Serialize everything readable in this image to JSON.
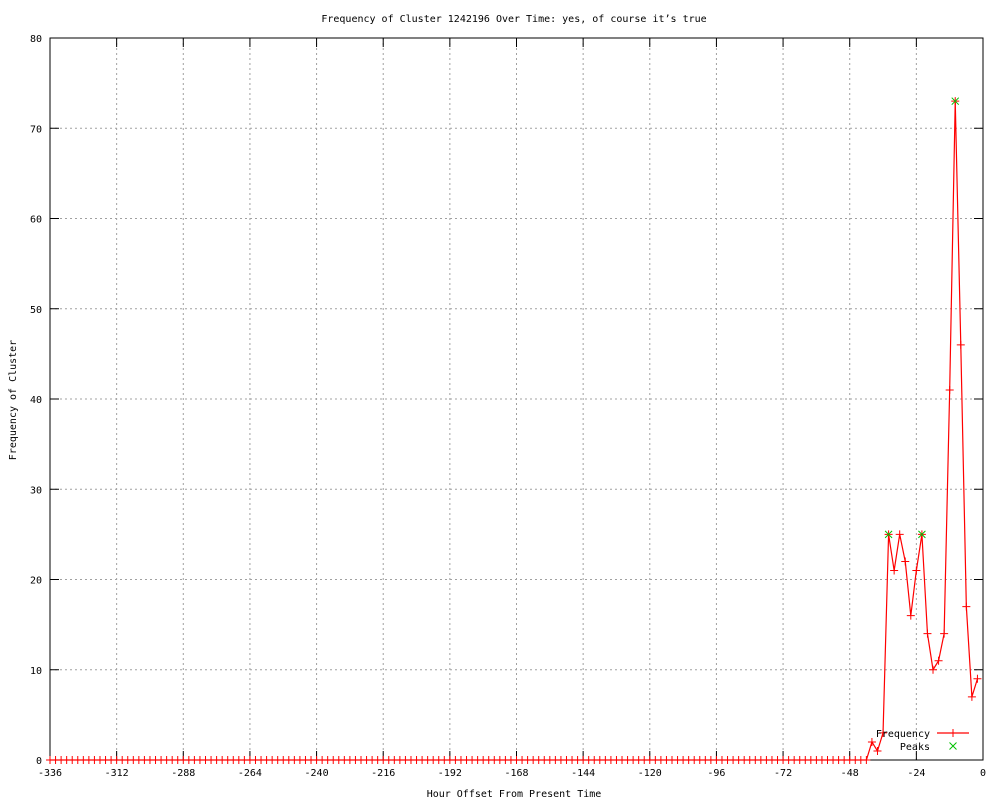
{
  "chart_data": {
    "type": "line",
    "title": "Frequency of Cluster 1242196 Over Time: yes, of course it’s true",
    "xlabel": "Hour Offset From Present Time",
    "ylabel": "Frequency of Cluster",
    "xlim": [
      -336,
      0
    ],
    "ylim": [
      0,
      80
    ],
    "xticks": [
      -336,
      -312,
      -288,
      -264,
      -240,
      -216,
      -192,
      -168,
      -144,
      -120,
      -96,
      -72,
      -48,
      -24,
      0
    ],
    "yticks": [
      0,
      10,
      20,
      30,
      40,
      50,
      60,
      70,
      80
    ],
    "grid": true,
    "legend_position": "bottom-right",
    "series": [
      {
        "name": "Frequency",
        "color": "#ff0000",
        "style": "linespoints",
        "zero_from": -336,
        "zero_to": -42,
        "step": 2,
        "x": [
          -40,
          -38,
          -36,
          -34,
          -32,
          -30,
          -28,
          -26,
          -24,
          -22,
          -20,
          -18,
          -16,
          -14,
          -12,
          -10,
          -8,
          -6,
          -4,
          -2
        ],
        "y": [
          2,
          1,
          3,
          25,
          21,
          25,
          22,
          16,
          21,
          25,
          14,
          10,
          11,
          14,
          41,
          73,
          46,
          17,
          7,
          9
        ]
      },
      {
        "name": "Peaks",
        "color": "#00c000",
        "style": "points",
        "x": [
          -34,
          -22,
          -10
        ],
        "y": [
          25,
          25,
          73
        ]
      }
    ]
  }
}
